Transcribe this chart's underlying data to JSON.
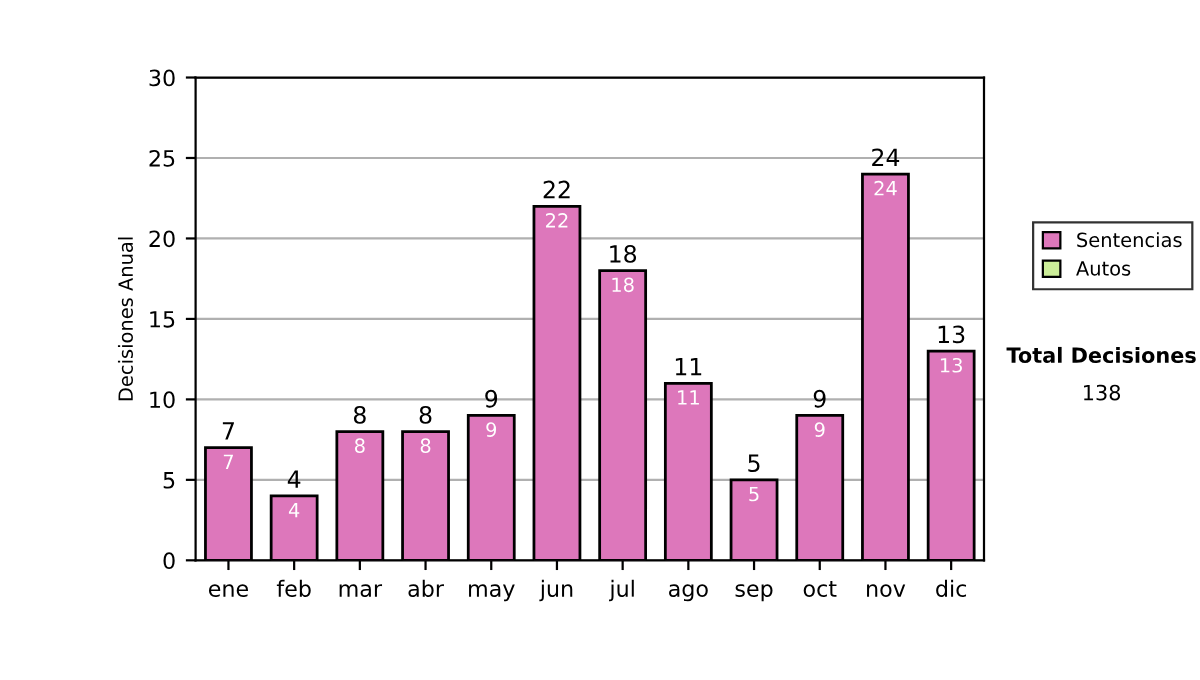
{
  "chart_data": {
    "type": "bar",
    "stacked": true,
    "ylabel": "Decisiones Anual",
    "categories": [
      "ene",
      "feb",
      "mar",
      "abr",
      "may",
      "jun",
      "jul",
      "ago",
      "sep",
      "oct",
      "nov",
      "dic"
    ],
    "series": [
      {
        "name": "Sentencias",
        "color": "#dd77bb",
        "values": [
          7,
          4,
          8,
          8,
          9,
          22,
          18,
          11,
          5,
          9,
          24,
          13
        ]
      },
      {
        "name": "Autos",
        "color": "#ccee99",
        "values": [
          null,
          null,
          null,
          null,
          null,
          null,
          null,
          null,
          null,
          null,
          null,
          null
        ]
      }
    ],
    "totals": [
      "7",
      "4",
      "8",
      "8",
      "9",
      "22",
      "18",
      "11",
      "5",
      "9",
      "24",
      "13"
    ],
    "data_labels": true,
    "ylim": [
      0,
      30
    ],
    "yticks": [
      0,
      5,
      10,
      15,
      20,
      25,
      30
    ],
    "grid": "y",
    "legend": "right",
    "annotations": [
      "Total Decisiones",
      "138"
    ]
  }
}
